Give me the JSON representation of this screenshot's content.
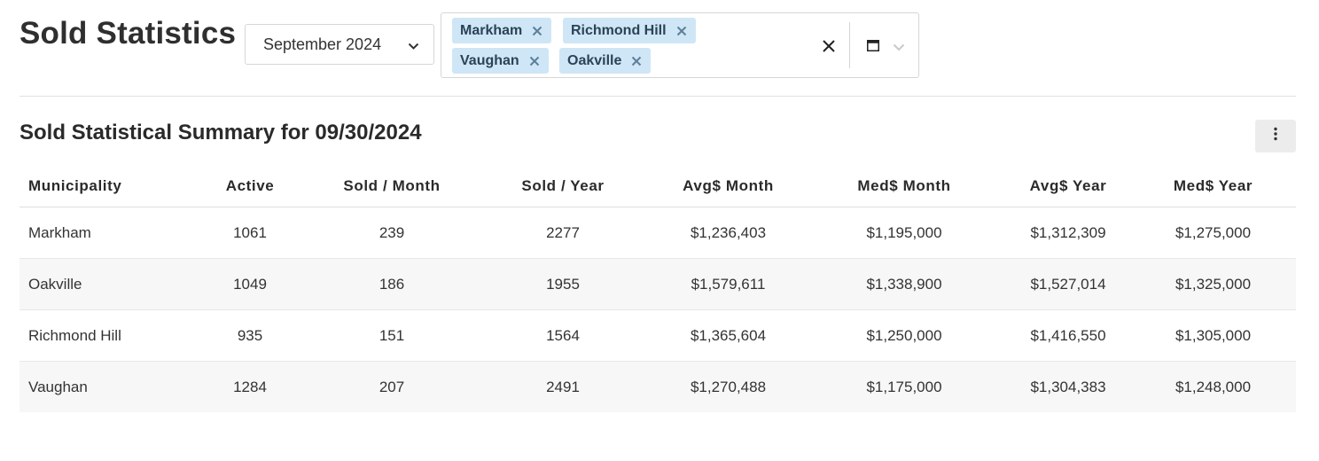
{
  "header": {
    "title": "Sold Statistics"
  },
  "filters": {
    "month": "September 2024",
    "municipalities": [
      "Markham",
      "Richmond Hill",
      "Vaughan",
      "Oakville"
    ]
  },
  "summary": {
    "title": "Sold Statistical Summary for 09/30/2024",
    "columns": [
      "Municipality",
      "Active",
      "Sold / Month",
      "Sold / Year",
      "Avg$ Month",
      "Med$ Month",
      "Avg$ Year",
      "Med$ Year"
    ],
    "rows": [
      [
        "Markham",
        "1061",
        "239",
        "2277",
        "$1,236,403",
        "$1,195,000",
        "$1,312,309",
        "$1,275,000"
      ],
      [
        "Oakville",
        "1049",
        "186",
        "1955",
        "$1,579,611",
        "$1,338,900",
        "$1,527,014",
        "$1,325,000"
      ],
      [
        "Richmond Hill",
        "935",
        "151",
        "1564",
        "$1,365,604",
        "$1,250,000",
        "$1,416,550",
        "$1,305,000"
      ],
      [
        "Vaughan",
        "1284",
        "207",
        "2491",
        "$1,270,488",
        "$1,175,000",
        "$1,304,383",
        "$1,248,000"
      ]
    ]
  },
  "icons": {
    "month_dropdown": "chevron-down-icon",
    "chip_remove": "close-icon",
    "clear_all": "close-icon",
    "panel": "window-icon",
    "more_menu": "more-vertical-icon"
  },
  "colors": {
    "chip_background": "#cfe6f6",
    "chip_text": "#2b4257",
    "row_stripe": "#f7f7f7"
  }
}
